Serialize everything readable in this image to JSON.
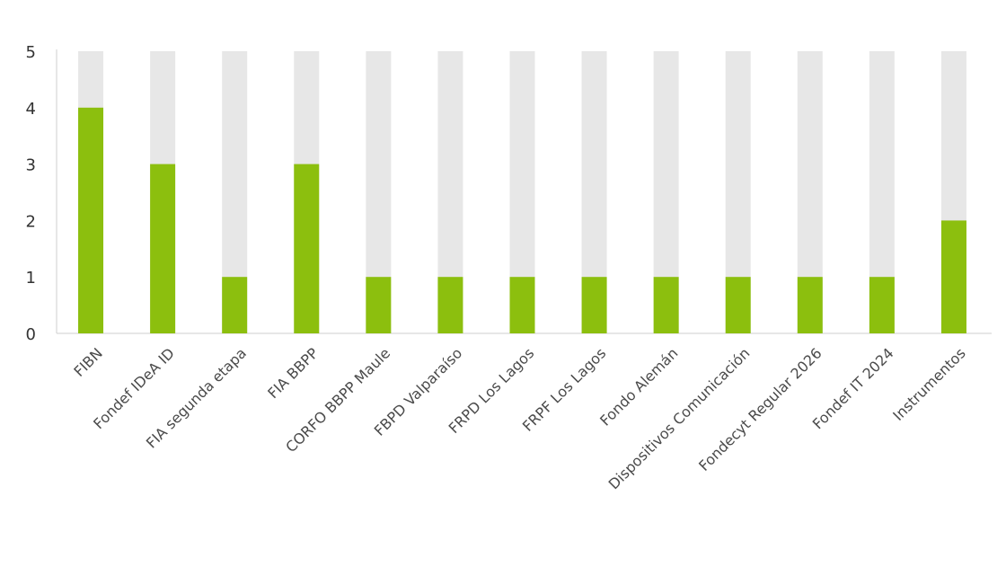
{
  "chart_data": {
    "type": "bar",
    "categories": [
      "FIBN",
      "Fondef IDeA ID",
      "FIA segunda etapa",
      "FIA BBPP",
      "CORFO BBPP Maule",
      "FBPD Valparaíso",
      "FRPD Los Lagos",
      "FRPF Los Lagos",
      "Fondo Alemán",
      "Dispositivos Comunicación",
      "Fondecyt Regular 2026",
      "Fondef IT 2024",
      "Instrumentos"
    ],
    "values": [
      4,
      3,
      1,
      3,
      1,
      1,
      1,
      1,
      1,
      1,
      1,
      1,
      2
    ],
    "ylim": [
      0,
      5
    ],
    "yticks": [
      0,
      1,
      2,
      3,
      4,
      5
    ],
    "title": "",
    "xlabel": "",
    "ylabel": "",
    "grid": false,
    "colors": {
      "bar": "#8cbf0e",
      "track": "#e7e7e7",
      "axis": "#cfcfcf"
    }
  }
}
